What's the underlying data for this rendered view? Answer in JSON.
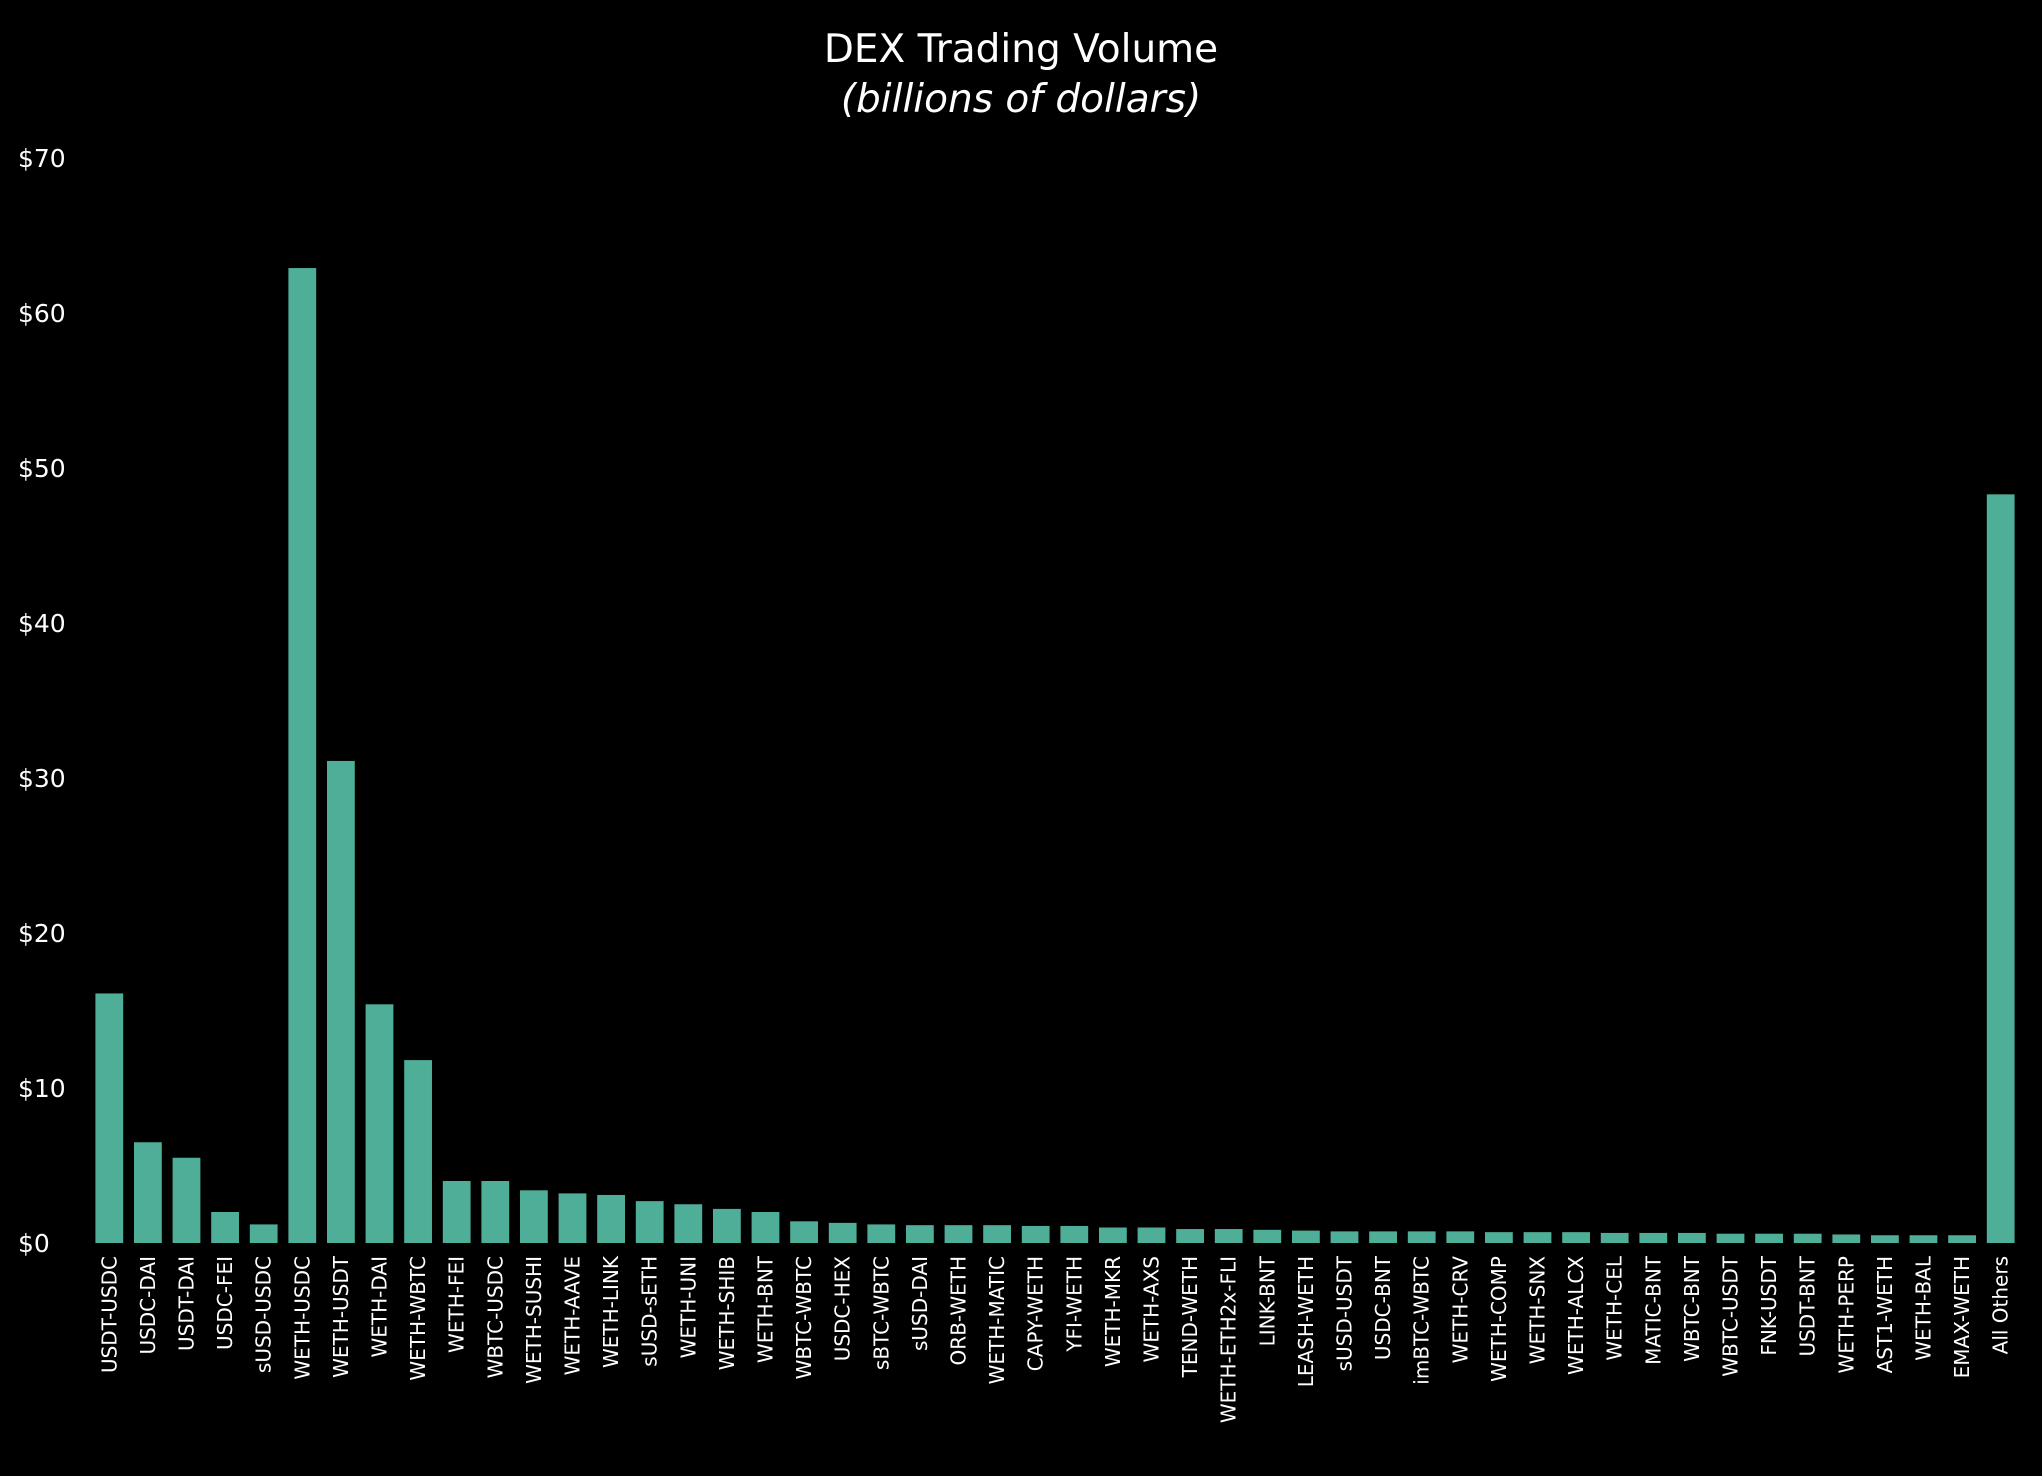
{
  "chart_data": {
    "type": "bar",
    "title": "DEX Trading Volume",
    "subtitle": "(billions of dollars)",
    "xlabel": "",
    "ylabel": "",
    "ylim": [
      0,
      70
    ],
    "y_ticks": [
      0,
      10,
      20,
      30,
      40,
      50,
      60,
      70
    ],
    "y_tick_labels": [
      "$0",
      "$10",
      "$20",
      "$30",
      "$40",
      "$50",
      "$60",
      "$70"
    ],
    "grid": false,
    "legend": "none",
    "bar_color": "#4fae98",
    "background": "#000000",
    "categories": [
      "USDT-USDC",
      "USDC-DAI",
      "USDT-DAI",
      "USDC-FEI",
      "sUSD-USDC",
      "WETH-USDC",
      "WETH-USDT",
      "WETH-DAI",
      "WETH-WBTC",
      "WETH-FEI",
      "WBTC-USDC",
      "WETH-SUSHI",
      "WETH-AAVE",
      "WETH-LINK",
      "sUSD-sETH",
      "WETH-UNI",
      "WETH-SHIB",
      "WETH-BNT",
      "WBTC-WBTC",
      "USDC-HEX",
      "sBTC-WBTC",
      "sUSD-DAI",
      "ORB-WETH",
      "WETH-MATIC",
      "CAPY-WETH",
      "YFI-WETH",
      "WETH-MKR",
      "WETH-AXS",
      "TEND-WETH",
      "WETH-ETH2x-FLI",
      "LINK-BNT",
      "LEASH-WETH",
      "sUSD-USDT",
      "USDC-BNT",
      "imBTC-WBTC",
      "WETH-CRV",
      "WETH-COMP",
      "WETH-SNX",
      "WETH-ALCX",
      "WETH-CEL",
      "MATIC-BNT",
      "WBTC-BNT",
      "WBTC-USDT",
      "FNK-USDT",
      "USDT-BNT",
      "WETH-PERP",
      "AST1-WETH",
      "WETH-BAL",
      "EMAX-WETH",
      "All Others"
    ],
    "values": [
      16.1,
      6.5,
      5.5,
      2.0,
      1.2,
      62.9,
      31.1,
      15.4,
      11.8,
      4.0,
      4.0,
      3.4,
      3.2,
      3.1,
      2.7,
      2.5,
      2.2,
      2.0,
      1.4,
      1.3,
      1.2,
      1.15,
      1.15,
      1.15,
      1.1,
      1.1,
      1.0,
      1.0,
      0.9,
      0.9,
      0.85,
      0.8,
      0.75,
      0.75,
      0.75,
      0.75,
      0.7,
      0.7,
      0.7,
      0.65,
      0.65,
      0.65,
      0.6,
      0.6,
      0.6,
      0.55,
      0.5,
      0.5,
      0.5,
      48.3
    ]
  }
}
